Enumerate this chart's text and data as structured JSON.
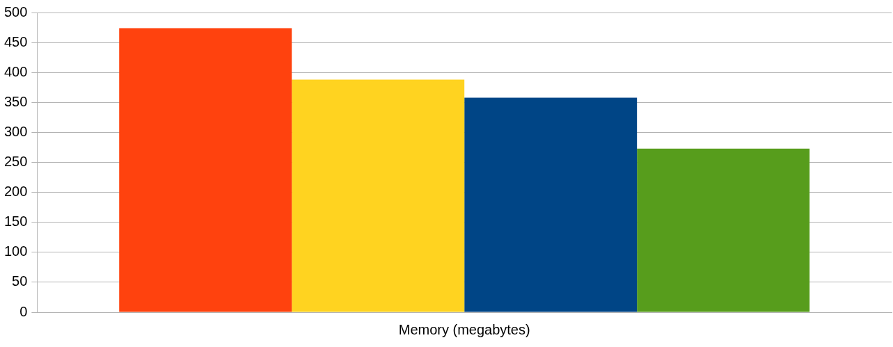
{
  "chart_data": {
    "type": "bar",
    "categories": [
      "Memory (megabytes)"
    ],
    "series": [
      {
        "color": "#ff420e",
        "values": [
          474
        ]
      },
      {
        "color": "#ffd320",
        "values": [
          388
        ]
      },
      {
        "color": "#004586",
        "values": [
          358
        ]
      },
      {
        "color": "#579d1c",
        "values": [
          273
        ]
      }
    ],
    "ylim": [
      0,
      500
    ],
    "yticks": [
      0,
      50,
      100,
      150,
      200,
      250,
      300,
      350,
      400,
      450,
      500
    ],
    "grid": "y",
    "legend": false
  }
}
